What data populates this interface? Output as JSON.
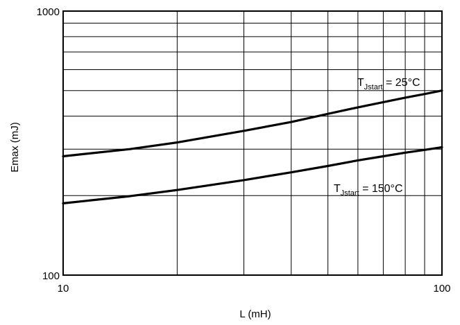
{
  "chart_data": {
    "type": "line",
    "title": "",
    "xlabel": "L (mH)",
    "ylabel": "Emax (mJ)",
    "xscale": "log",
    "yscale": "log",
    "xlim": [
      10,
      100
    ],
    "ylim": [
      100,
      1000
    ],
    "grid": true,
    "legend": "none",
    "x_ticks": [
      10,
      20,
      30,
      40,
      50,
      60,
      70,
      80,
      90,
      100
    ],
    "y_ticks": [
      100,
      200,
      300,
      400,
      500,
      600,
      700,
      800,
      900,
      1000
    ],
    "x_tick_labels": [
      "10",
      "100"
    ],
    "y_tick_labels": [
      "100",
      "1000"
    ],
    "series": [
      {
        "color": "#000000",
        "x": [
          10,
          15,
          20,
          30,
          40,
          50,
          60,
          70,
          80,
          90,
          100
        ],
        "y": [
          282,
          300,
          318,
          352,
          380,
          408,
          432,
          452,
          470,
          485,
          500
        ]
      },
      {
        "color": "#000000",
        "x": [
          10,
          15,
          20,
          30,
          40,
          50,
          60,
          70,
          80,
          90,
          100
        ],
        "y": [
          187,
          199,
          210,
          229,
          245,
          259,
          272,
          282,
          291,
          298,
          305
        ]
      }
    ],
    "annotations": [
      {
        "base": "T",
        "sub": "Jstart",
        "rest": " = 25°C",
        "x": 60,
        "y": 540
      },
      {
        "base": "T",
        "sub": "Jstart",
        "rest": " = 150°C",
        "x": 52,
        "y": 214
      }
    ]
  }
}
